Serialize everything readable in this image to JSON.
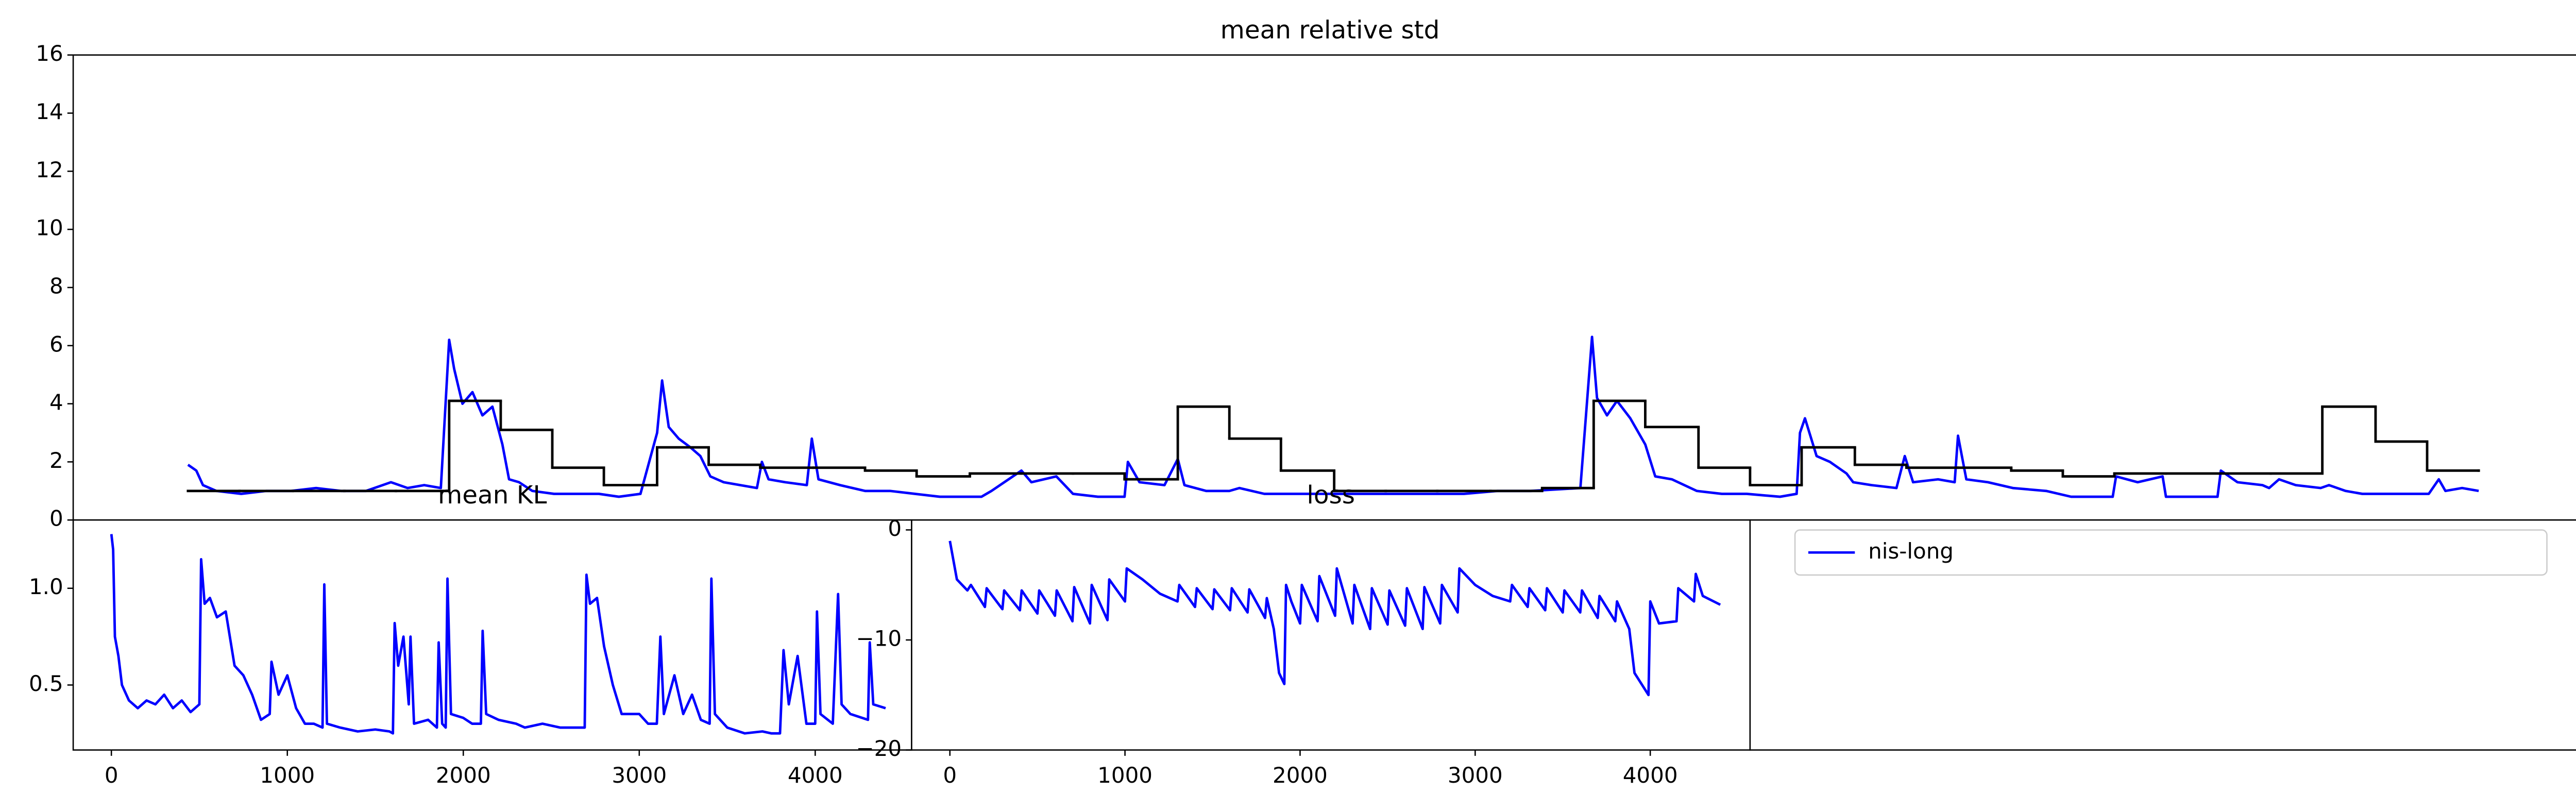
{
  "chart_data": [
    {
      "type": "line",
      "title": "mean relative std",
      "xlim": [
        -69,
        1442
      ],
      "ylim": [
        0,
        16
      ],
      "yticks": [
        0,
        2,
        4,
        6,
        8,
        10,
        12,
        14,
        16
      ],
      "series": [
        {
          "color": "#0000ff",
          "x": [
            0,
            5,
            9,
            17,
            32,
            47,
            62,
            77,
            92,
            107,
            122,
            132,
            142,
            152,
            157,
            160,
            165,
            171,
            177,
            183,
            189,
            193,
            199,
            207,
            220,
            232,
            247,
            259,
            272,
            282,
            285,
            289,
            295,
            302,
            308,
            314,
            322,
            332,
            342,
            345,
            349,
            359,
            372,
            375,
            379,
            392,
            407,
            422,
            437,
            452,
            467,
            477,
            483,
            501,
            507,
            522,
            532,
            547,
            563,
            565,
            572,
            587,
            595,
            599,
            612,
            626,
            632,
            647,
            657,
            667,
            687,
            707,
            727,
            747,
            767,
            787,
            807,
            837,
            844,
            847,
            853,
            859,
            867,
            876,
            882,
            892,
            907,
            922,
            937,
            957,
            967,
            969,
            972,
            979,
            987,
            997,
            1001,
            1012,
            1027,
            1032,
            1037,
            1052,
            1062,
            1064,
            1069,
            1082,
            1097,
            1117,
            1132,
            1152,
            1157,
            1159,
            1172,
            1187,
            1189,
            1202,
            1220,
            1222,
            1232,
            1247,
            1251,
            1257,
            1267,
            1282,
            1287,
            1297,
            1307,
            1327,
            1347,
            1353,
            1357,
            1367,
            1377
          ],
          "values": [
            1.9,
            1.7,
            1.2,
            1.0,
            0.9,
            1.0,
            1.0,
            1.1,
            1.0,
            1.0,
            1.3,
            1.1,
            1.2,
            1.1,
            6.2,
            5.2,
            4.0,
            4.4,
            3.6,
            3.9,
            2.6,
            1.4,
            1.3,
            1.0,
            0.9,
            0.9,
            0.9,
            0.8,
            0.9,
            3.0,
            4.8,
            3.2,
            2.8,
            2.5,
            2.2,
            1.5,
            1.3,
            1.2,
            1.1,
            2.0,
            1.4,
            1.3,
            1.2,
            2.8,
            1.4,
            1.2,
            1.0,
            1.0,
            0.9,
            0.8,
            0.8,
            0.8,
            1.0,
            1.7,
            1.3,
            1.5,
            0.9,
            0.8,
            0.8,
            2.0,
            1.3,
            1.2,
            2.1,
            1.2,
            1.0,
            1.0,
            1.1,
            0.9,
            0.9,
            0.9,
            0.9,
            0.9,
            0.9,
            0.9,
            0.9,
            1.0,
            1.0,
            1.1,
            6.3,
            4.2,
            3.6,
            4.1,
            3.5,
            2.6,
            1.5,
            1.4,
            1.0,
            0.9,
            0.9,
            0.8,
            0.9,
            3.0,
            3.5,
            2.2,
            2.0,
            1.6,
            1.3,
            1.2,
            1.1,
            2.2,
            1.3,
            1.4,
            1.3,
            2.9,
            1.4,
            1.3,
            1.1,
            1.0,
            0.8,
            0.8,
            0.8,
            1.5,
            1.3,
            1.5,
            0.8,
            0.8,
            0.8,
            1.7,
            1.3,
            1.2,
            1.1,
            1.4,
            1.2,
            1.1,
            1.2,
            1.0,
            0.9,
            0.9,
            0.9,
            1.4,
            1.0,
            1.1,
            1.0
          ]
        },
        {
          "color": "#000000",
          "drawstyle": "steps-post",
          "x": [
            0,
            31,
            63,
            94,
            125,
            157,
            188,
            219,
            250,
            282,
            313,
            344,
            376,
            407,
            438,
            470,
            501,
            532,
            563,
            595,
            626,
            657,
            689,
            720,
            751,
            783,
            814,
            845,
            876,
            908,
            939,
            970,
            1002,
            1033,
            1064,
            1096,
            1127,
            1158,
            1189,
            1221,
            1252,
            1283,
            1315,
            1346,
            1377
          ],
          "values": [
            1.0,
            1.0,
            1.0,
            1.0,
            1.0,
            4.1,
            3.1,
            1.8,
            1.2,
            2.5,
            1.9,
            1.8,
            1.8,
            1.7,
            1.5,
            1.6,
            1.6,
            1.6,
            1.4,
            3.9,
            2.8,
            1.7,
            1.0,
            1.0,
            1.0,
            1.0,
            1.1,
            4.1,
            3.2,
            1.8,
            1.2,
            2.5,
            1.9,
            1.8,
            1.8,
            1.7,
            1.5,
            1.6,
            1.6,
            1.6,
            1.6,
            3.9,
            2.7,
            1.7,
            1.7
          ]
        }
      ]
    },
    {
      "type": "line",
      "title": "mean KL",
      "xlim": [
        -217,
        4548
      ],
      "ylim": [
        0.164,
        1.353
      ],
      "xticks": [
        0,
        1000,
        2000,
        3000,
        4000
      ],
      "yticks": [
        0.5,
        {
          "value": 1,
          "label": "1.0"
        }
      ],
      "series": [
        {
          "color": "#0000ff",
          "x": [
            0,
            10,
            20,
            40,
            60,
            100,
            150,
            200,
            250,
            300,
            350,
            400,
            450,
            500,
            510,
            530,
            560,
            600,
            650,
            700,
            750,
            800,
            850,
            900,
            910,
            950,
            1000,
            1050,
            1100,
            1150,
            1200,
            1210,
            1225,
            1300,
            1400,
            1500,
            1580,
            1600,
            1610,
            1630,
            1660,
            1690,
            1700,
            1720,
            1800,
            1850,
            1860,
            1880,
            1900,
            1910,
            1930,
            2000,
            2050,
            2100,
            2110,
            2130,
            2200,
            2300,
            2350,
            2450,
            2550,
            2650,
            2690,
            2700,
            2720,
            2760,
            2800,
            2850,
            2900,
            3000,
            3050,
            3100,
            3120,
            3140,
            3200,
            3250,
            3300,
            3350,
            3400,
            3410,
            3430,
            3500,
            3600,
            3700,
            3750,
            3800,
            3820,
            3850,
            3900,
            3950,
            4000,
            4010,
            4030,
            4100,
            4130,
            4150,
            4200,
            4300,
            4310,
            4330,
            4400
          ],
          "values": [
            1.28,
            1.2,
            0.75,
            0.65,
            0.5,
            0.42,
            0.38,
            0.42,
            0.4,
            0.45,
            0.38,
            0.42,
            0.36,
            0.4,
            1.15,
            0.92,
            0.95,
            0.85,
            0.88,
            0.6,
            0.55,
            0.45,
            0.32,
            0.35,
            0.62,
            0.45,
            0.55,
            0.38,
            0.3,
            0.3,
            0.28,
            1.02,
            0.3,
            0.28,
            0.26,
            0.27,
            0.26,
            0.25,
            0.82,
            0.6,
            0.75,
            0.4,
            0.75,
            0.3,
            0.32,
            0.28,
            0.72,
            0.3,
            0.28,
            1.05,
            0.35,
            0.33,
            0.3,
            0.3,
            0.78,
            0.35,
            0.32,
            0.3,
            0.28,
            0.3,
            0.28,
            0.28,
            0.28,
            1.07,
            0.92,
            0.95,
            0.7,
            0.5,
            0.35,
            0.35,
            0.3,
            0.3,
            0.75,
            0.35,
            0.55,
            0.35,
            0.45,
            0.32,
            0.3,
            1.05,
            0.35,
            0.28,
            0.25,
            0.26,
            0.25,
            0.25,
            0.68,
            0.4,
            0.65,
            0.3,
            0.3,
            0.88,
            0.35,
            0.3,
            0.97,
            0.4,
            0.35,
            0.32,
            0.72,
            0.4,
            0.38
          ]
        }
      ]
    },
    {
      "type": "line",
      "title": "loss",
      "xlim": [
        -218.5,
        4570
      ],
      "ylim": [
        -20,
        0.9
      ],
      "xticks": [
        0,
        1000,
        2000,
        3000,
        4000
      ],
      "yticks": [
        0,
        {
          "value": -10,
          "label": "−10"
        },
        {
          "value": -20,
          "label": "−20"
        }
      ],
      "series": [
        {
          "color": "#0000ff",
          "x": [
            0,
            40,
            100,
            120,
            200,
            210,
            300,
            310,
            400,
            410,
            500,
            510,
            600,
            610,
            700,
            710,
            800,
            810,
            900,
            910,
            1000,
            1010,
            1100,
            1200,
            1300,
            1310,
            1400,
            1410,
            1500,
            1510,
            1600,
            1610,
            1700,
            1710,
            1800,
            1810,
            1850,
            1880,
            1910,
            1920,
            1950,
            2000,
            2010,
            2100,
            2110,
            2200,
            2210,
            2300,
            2310,
            2400,
            2410,
            2500,
            2510,
            2600,
            2610,
            2700,
            2710,
            2800,
            2810,
            2900,
            2910,
            3000,
            3100,
            3200,
            3210,
            3300,
            3310,
            3400,
            3410,
            3500,
            3510,
            3600,
            3610,
            3700,
            3710,
            3800,
            3810,
            3880,
            3910,
            3990,
            4000,
            4050,
            4150,
            4160,
            4250,
            4260,
            4300,
            4400
          ],
          "values": [
            -1,
            -4.5,
            -5.5,
            -5,
            -7,
            -5.3,
            -7.2,
            -5.5,
            -7.3,
            -5.5,
            -7.6,
            -5.5,
            -7.8,
            -5.5,
            -8.3,
            -5.2,
            -8.5,
            -5,
            -8.2,
            -4.5,
            -6.5,
            -3.5,
            -4.5,
            -5.8,
            -6.5,
            -5,
            -7,
            -5.3,
            -7.2,
            -5.4,
            -7.3,
            -5.3,
            -7.5,
            -5.4,
            -8,
            -6.2,
            -9,
            -13,
            -14,
            -5,
            -6.5,
            -8.5,
            -5,
            -8.3,
            -4.2,
            -7.8,
            -3.5,
            -8.5,
            -5,
            -9,
            -5.3,
            -8.6,
            -5.5,
            -8.7,
            -5.3,
            -9,
            -5.2,
            -8.5,
            -5,
            -7.5,
            -3.5,
            -5,
            -6,
            -6.5,
            -5,
            -7,
            -5.3,
            -7.3,
            -5.3,
            -7.5,
            -5.5,
            -7.5,
            -5.5,
            -8,
            -6,
            -8.3,
            -6.5,
            -9,
            -13,
            -15,
            -6.5,
            -8.5,
            -8.3,
            -5.3,
            -6.5,
            -4,
            -6,
            -6.8
          ]
        }
      ]
    },
    {
      "type": "legend",
      "legend": "upper left",
      "series": [
        {
          "name": "nis-long",
          "color": "#0000ff"
        }
      ]
    }
  ]
}
